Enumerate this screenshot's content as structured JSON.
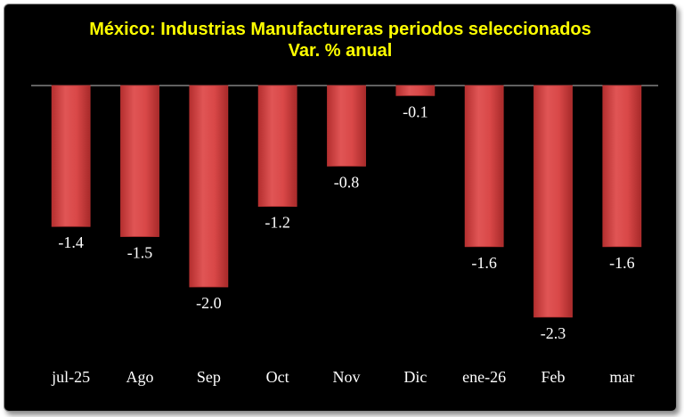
{
  "chart_data": {
    "type": "bar",
    "title": "México: Industrias Manufactureras periodos seleccionados",
    "subtitle": "Var. % anual",
    "categories": [
      "jul-25",
      "Ago",
      "Sep",
      "Oct",
      "Nov",
      "Dic",
      "ene-26",
      "Feb",
      "mar"
    ],
    "values": [
      -1.4,
      -1.5,
      -2.0,
      -1.2,
      -0.8,
      -0.1,
      -1.6,
      -2.3,
      -1.6
    ],
    "data_labels": [
      "-1.4",
      "-1.5",
      "-2.0",
      "-1.2",
      "-0.8",
      "-0.1",
      "-1.6",
      "-2.3",
      "-1.6"
    ],
    "ylim": [
      -2.3,
      0
    ],
    "grid": false,
    "legend": "none",
    "colors": {
      "background": "#000000",
      "bar": "#d64040",
      "bar_edge": "#b83232",
      "title": "#ffff00",
      "labels": "#ffffff",
      "axis": "#bfbfbf"
    }
  }
}
